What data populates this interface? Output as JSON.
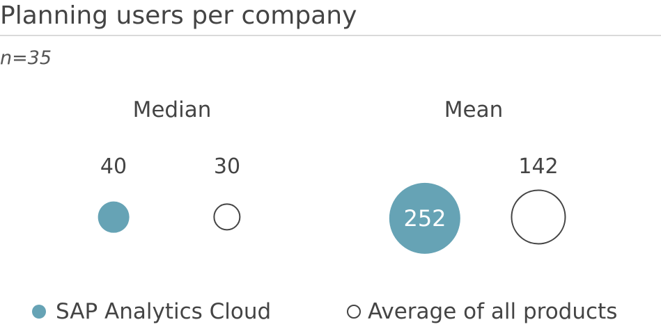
{
  "chart_data": {
    "type": "bubble",
    "title": "Planning users per company",
    "subtitle": "n=35",
    "groups": [
      "Median",
      "Mean"
    ],
    "series": [
      {
        "name": "SAP Analytics Cloud",
        "values": [
          40,
          252
        ],
        "color": "#66a3b5",
        "style": "filled"
      },
      {
        "name": "Average of all products",
        "values": [
          30,
          142
        ],
        "color": "#444444",
        "style": "hollow"
      }
    ],
    "labels": {
      "median_sac": "40",
      "median_avg": "30",
      "mean_sac": "252",
      "mean_avg": "142"
    },
    "legend_position": "bottom"
  }
}
